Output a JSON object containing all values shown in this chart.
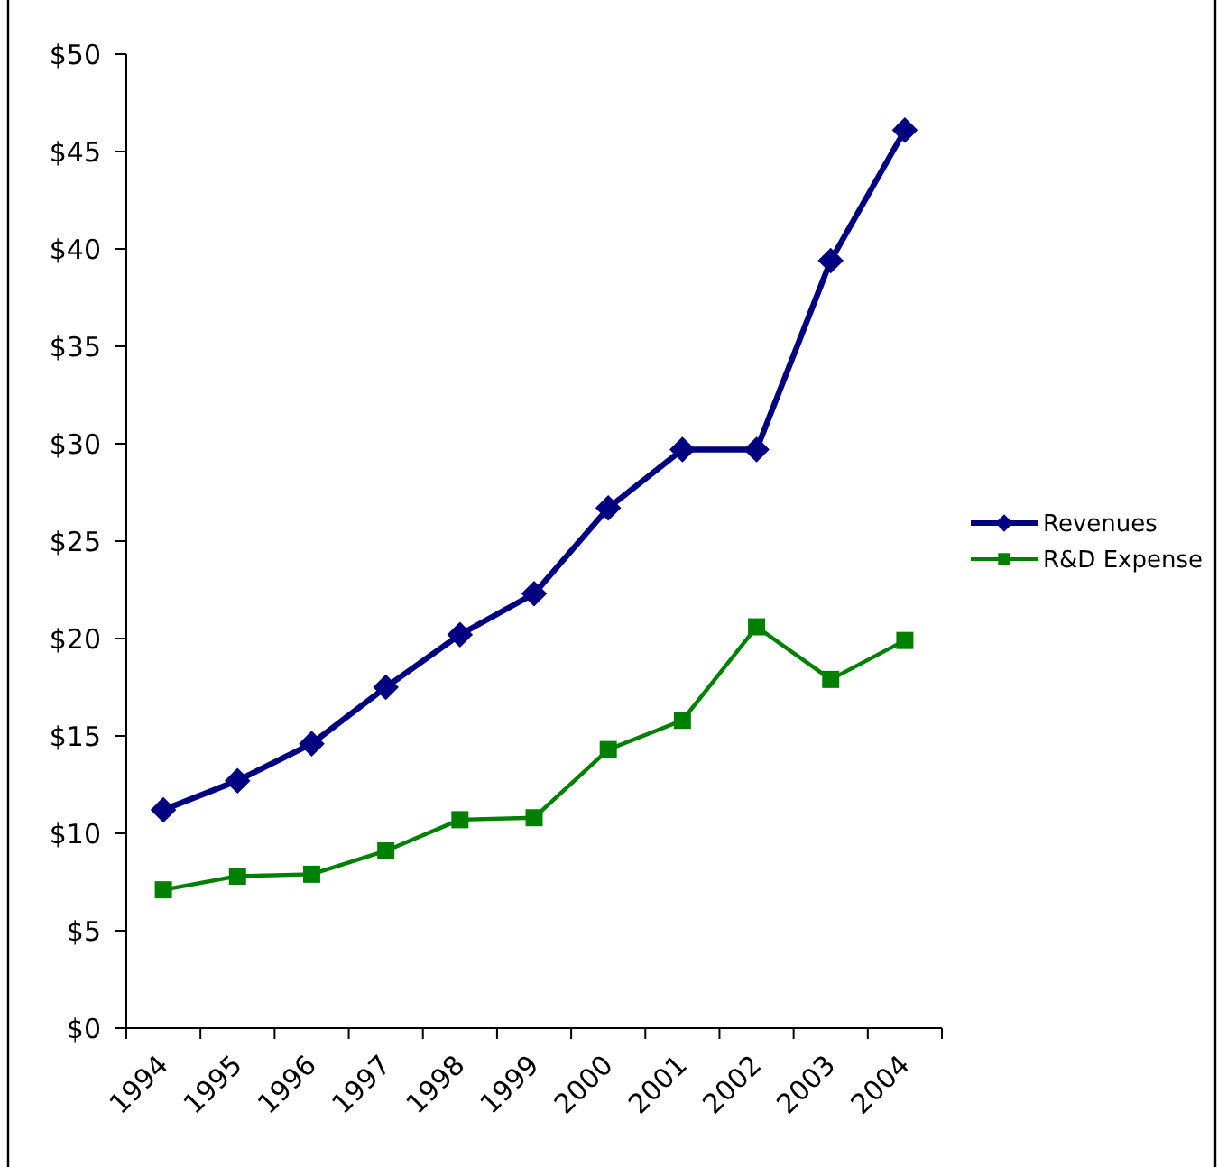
{
  "chart_data": {
    "type": "line",
    "categories": [
      "1994",
      "1995",
      "1996",
      "1997",
      "1998",
      "1999",
      "2000",
      "2001",
      "2002",
      "2003",
      "2004"
    ],
    "series": [
      {
        "name": "Revenues",
        "color": "#000080",
        "marker": "diamond",
        "values": [
          11.2,
          12.7,
          14.6,
          17.5,
          20.2,
          22.3,
          26.7,
          29.7,
          29.7,
          39.4,
          46.1
        ]
      },
      {
        "name": "R&D Expense",
        "color": "#008000",
        "marker": "square",
        "values": [
          7.1,
          7.8,
          7.9,
          9.1,
          10.7,
          10.8,
          14.3,
          15.8,
          20.6,
          17.9,
          19.9
        ]
      }
    ],
    "ylim": [
      0,
      50
    ],
    "yticks": [
      {
        "value": 0,
        "label": "$0"
      },
      {
        "value": 5,
        "label": "$5"
      },
      {
        "value": 10,
        "label": "$10"
      },
      {
        "value": 15,
        "label": "$15"
      },
      {
        "value": 20,
        "label": "$20"
      },
      {
        "value": 25,
        "label": "$25"
      },
      {
        "value": 30,
        "label": "$30"
      },
      {
        "value": 35,
        "label": "$35"
      },
      {
        "value": 40,
        "label": "$40"
      },
      {
        "value": 45,
        "label": "$45"
      },
      {
        "value": 50,
        "label": "$50"
      }
    ],
    "grid": false,
    "legend": "right",
    "line_style": "solid"
  }
}
